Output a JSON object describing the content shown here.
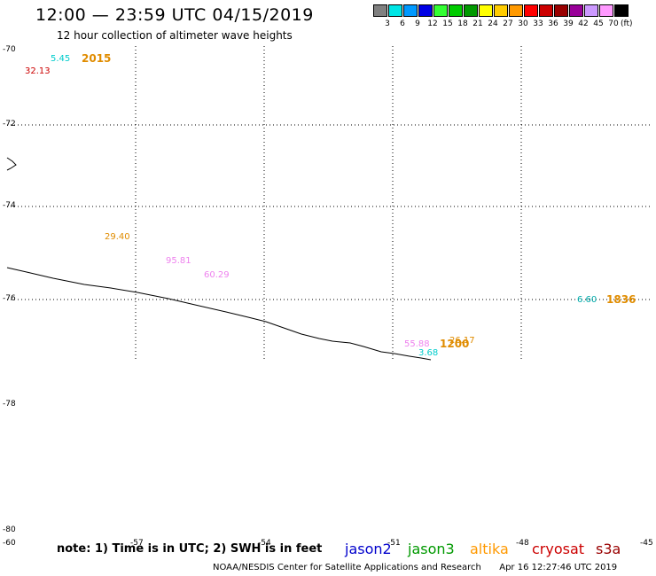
{
  "title": "12:00 — 23:59 UTC 04/15/2019",
  "subtitle": "12 hour collection of altimeter wave heights",
  "legend": {
    "colors": [
      "#808080",
      "#00e5e5",
      "#0099ff",
      "#0000e5",
      "#33ff33",
      "#00cc00",
      "#009900",
      "#ffff00",
      "#ffcc00",
      "#ff9900",
      "#ff0000",
      "#cc0000",
      "#990000",
      "#990099",
      "#cc99ff",
      "#ff99ff",
      "#000000"
    ],
    "values": [
      "3",
      "6",
      "9",
      "12",
      "15",
      "18",
      "21",
      "24",
      "27",
      "30",
      "33",
      "36",
      "39",
      "42",
      "45",
      "70"
    ],
    "unit": "(ft)"
  },
  "lat_labels": [
    "-70",
    "-72",
    "-74",
    "-76",
    "-78",
    "-80"
  ],
  "lat_labels_left": [
    "-78"
  ],
  "lon_labels": [
    "-60",
    "-57",
    "-54",
    "-51",
    "-48",
    "-45"
  ],
  "observations": [
    {
      "text": "5.45",
      "color": "#00cccc"
    },
    {
      "text": "2015",
      "color": "#e08c00"
    },
    {
      "text": "32.13",
      "color": "#cc0000"
    },
    {
      "text": "29.40",
      "color": "#e08c00"
    },
    {
      "text": "95.81",
      "color": "#ee82ee"
    },
    {
      "text": "60.29",
      "color": "#ee82ee"
    },
    {
      "text": "6.60",
      "color": "#00aaaa"
    },
    {
      "text": "1836",
      "color": "#e08c00"
    },
    {
      "text": "55.88",
      "color": "#ee82ee"
    },
    {
      "text": "1200",
      "color": "#e08c00"
    },
    {
      "text": "26.17",
      "color": "#e08c00"
    },
    {
      "text": "3.68",
      "color": "#00cccc"
    }
  ],
  "note": "note: 1) Time is in UTC; 2) SWH is in feet",
  "satellites": [
    {
      "name": "jason2",
      "color": "#0000cc"
    },
    {
      "name": "jason3",
      "color": "#009900"
    },
    {
      "name": "altika",
      "color": "#ff9900"
    },
    {
      "name": "cryosat",
      "color": "#cc0000"
    },
    {
      "name": "s3a",
      "color": "#990000"
    }
  ],
  "credit": "NOAA/NESDIS Center for Satellite Applications and Research",
  "timestamp": "Apr 16 12:27:46 UTC 2019"
}
